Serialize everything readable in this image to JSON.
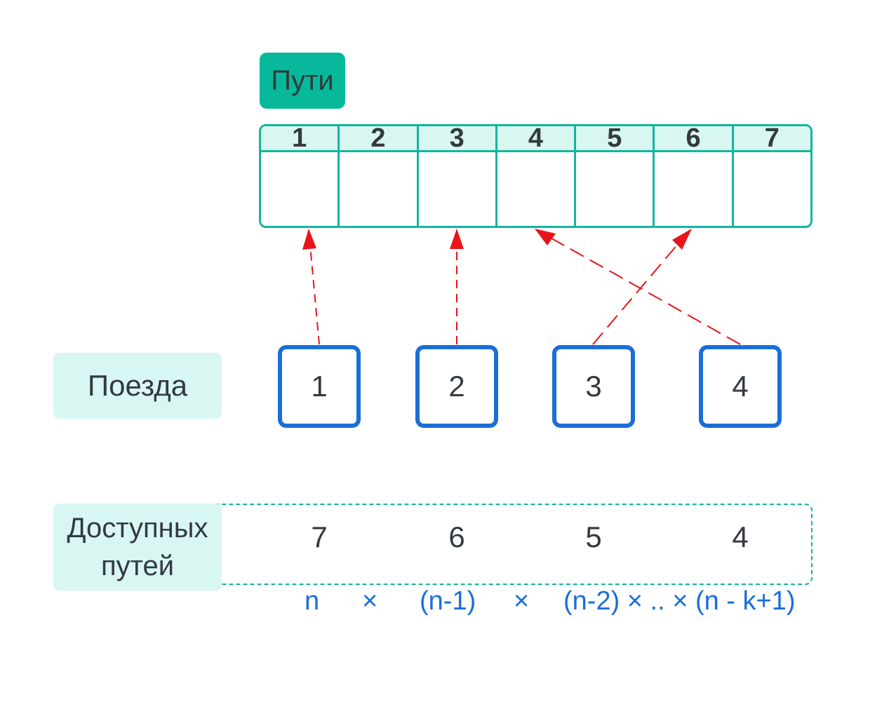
{
  "tracks_label": "Пути",
  "tracks": [
    "1",
    "2",
    "3",
    "4",
    "5",
    "6",
    "7"
  ],
  "trains_label": "Поезда",
  "trains": [
    "1",
    "2",
    "3",
    "4"
  ],
  "available_label_line1": "Доступных",
  "available_label_line2": "путей",
  "available": [
    "7",
    "6",
    "5",
    "4"
  ],
  "formula": {
    "t1": "n",
    "t2": "×",
    "t3": "(n-1)",
    "t4": "×",
    "t5": "(n-2) × .. × (n - k+1)"
  },
  "colors": {
    "teal": "#13b5a0",
    "blue": "#1a6ed8",
    "arrow": "#e8141b"
  }
}
